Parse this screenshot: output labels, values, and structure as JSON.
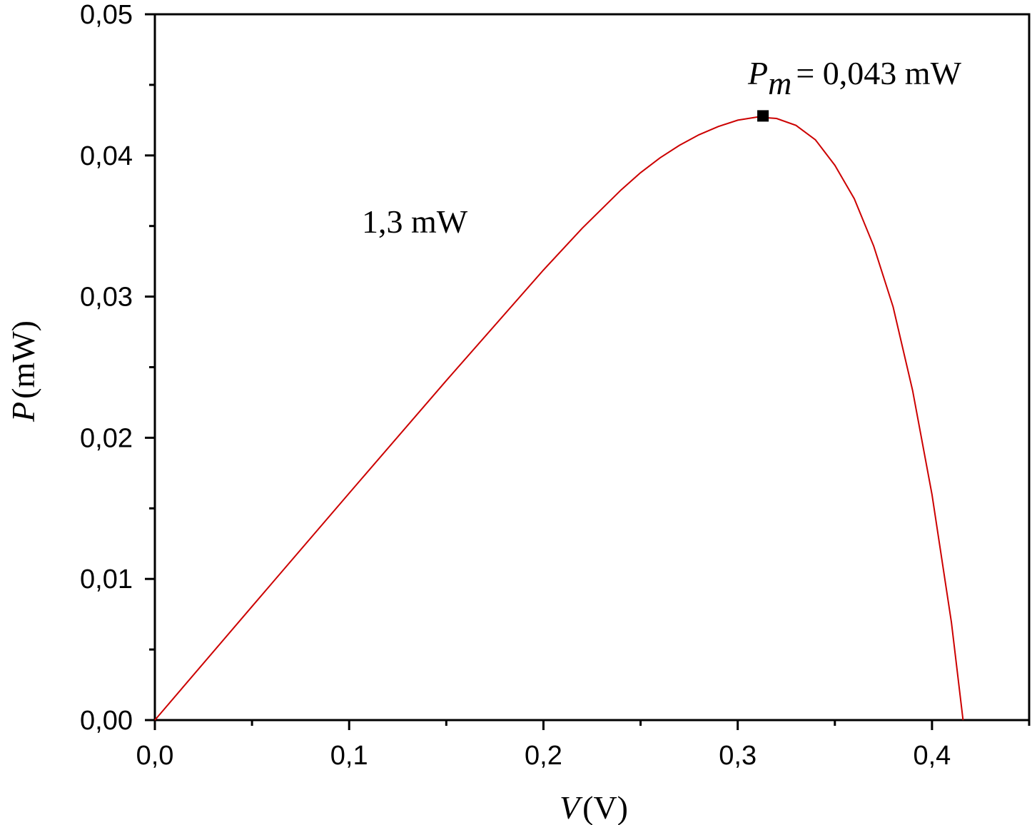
{
  "chart_data": {
    "type": "line",
    "xlabel": {
      "symbol": "V",
      "unit": "(V)"
    },
    "ylabel": {
      "symbol": "P",
      "unit": "(mW)"
    },
    "xlim": [
      0,
      0.45
    ],
    "ylim": [
      0,
      0.05
    ],
    "x_ticks": [
      "0,0",
      "0,1",
      "0,2",
      "0,3",
      "0,4"
    ],
    "x_tick_values": [
      0,
      0.1,
      0.2,
      0.3,
      0.4
    ],
    "x_minor_step": 0.05,
    "y_ticks": [
      "0,00",
      "0,01",
      "0,02",
      "0,03",
      "0,04",
      "0,05"
    ],
    "y_tick_values": [
      0,
      0.01,
      0.02,
      0.03,
      0.04,
      0.05
    ],
    "y_minor_step": 0.005,
    "grid": false,
    "series": [
      {
        "color": "#cc0000",
        "x": [
          0,
          0.05,
          0.1,
          0.15,
          0.2,
          0.22,
          0.24,
          0.25,
          0.26,
          0.27,
          0.28,
          0.29,
          0.3,
          0.31,
          0.32,
          0.33,
          0.34,
          0.35,
          0.36,
          0.37,
          0.38,
          0.39,
          0.4,
          0.41,
          0.416
        ],
        "values": [
          0,
          0.00805,
          0.01607,
          0.02405,
          0.03188,
          0.03485,
          0.03756,
          0.03878,
          0.03983,
          0.04072,
          0.04146,
          0.04205,
          0.0425,
          0.04272,
          0.04262,
          0.04213,
          0.0411,
          0.0393,
          0.03693,
          0.03358,
          0.02927,
          0.02335,
          0.01597,
          0.00692,
          0
        ]
      }
    ],
    "max_point": {
      "x": 0.313,
      "y": 0.0428,
      "marker": "square"
    },
    "annotations": [
      {
        "id": "pm",
        "symbol": "P",
        "subscript": "m",
        "text": "= 0,043 mW"
      },
      {
        "id": "illum",
        "text": "1,3 mW"
      }
    ]
  }
}
